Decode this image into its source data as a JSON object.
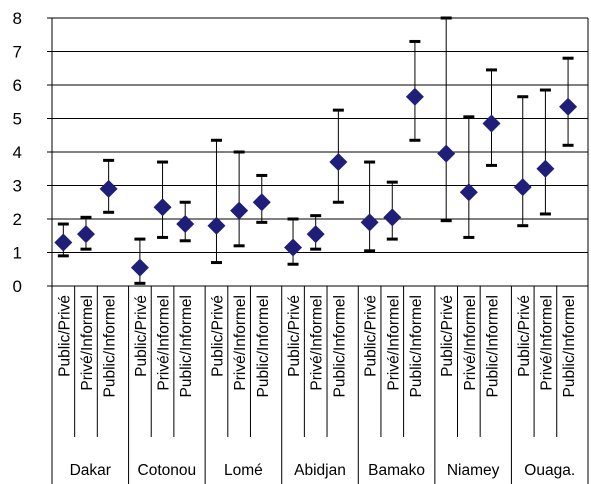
{
  "chart_data": {
    "type": "scatter",
    "error_bars": true,
    "ylim": [
      0,
      8
    ],
    "y_ticks": [
      0,
      1,
      2,
      3,
      4,
      5,
      6,
      7,
      8
    ],
    "grid": "horizontal",
    "marker": "diamond",
    "marker_color": "#1f1f7a",
    "sub_labels": [
      "Public/Privé",
      "Privé/Informel",
      "Public/Informel"
    ],
    "groups": [
      {
        "name": "Dakar",
        "points": [
          {
            "value": 1.3,
            "low": 0.9,
            "high": 1.85
          },
          {
            "value": 1.55,
            "low": 1.1,
            "high": 2.05
          },
          {
            "value": 2.9,
            "low": 2.2,
            "high": 3.75
          }
        ]
      },
      {
        "name": "Cotonou",
        "points": [
          {
            "value": 0.55,
            "low": 0.08,
            "high": 1.4
          },
          {
            "value": 2.35,
            "low": 1.45,
            "high": 3.7
          },
          {
            "value": 1.85,
            "low": 1.35,
            "high": 2.5
          }
        ]
      },
      {
        "name": "Lomé",
        "points": [
          {
            "value": 1.8,
            "low": 0.7,
            "high": 4.35
          },
          {
            "value": 2.25,
            "low": 1.2,
            "high": 4.0
          },
          {
            "value": 2.5,
            "low": 1.9,
            "high": 3.3
          }
        ]
      },
      {
        "name": "Abidjan",
        "points": [
          {
            "value": 1.15,
            "low": 0.65,
            "high": 2.0
          },
          {
            "value": 1.55,
            "low": 1.1,
            "high": 2.1
          },
          {
            "value": 3.7,
            "low": 2.5,
            "high": 5.25
          }
        ]
      },
      {
        "name": "Bamako",
        "points": [
          {
            "value": 1.9,
            "low": 1.05,
            "high": 3.7
          },
          {
            "value": 2.05,
            "low": 1.4,
            "high": 3.1
          },
          {
            "value": 5.65,
            "low": 4.35,
            "high": 7.3
          }
        ]
      },
      {
        "name": "Niamey",
        "points": [
          {
            "value": 3.95,
            "low": 1.95,
            "high": 8.0
          },
          {
            "value": 2.8,
            "low": 1.45,
            "high": 5.05
          },
          {
            "value": 4.85,
            "low": 3.6,
            "high": 6.45
          }
        ]
      },
      {
        "name": "Ouaga.",
        "points": [
          {
            "value": 2.95,
            "low": 1.8,
            "high": 5.65
          },
          {
            "value": 3.5,
            "low": 2.15,
            "high": 5.85
          },
          {
            "value": 5.35,
            "low": 4.2,
            "high": 6.8
          }
        ]
      }
    ]
  }
}
